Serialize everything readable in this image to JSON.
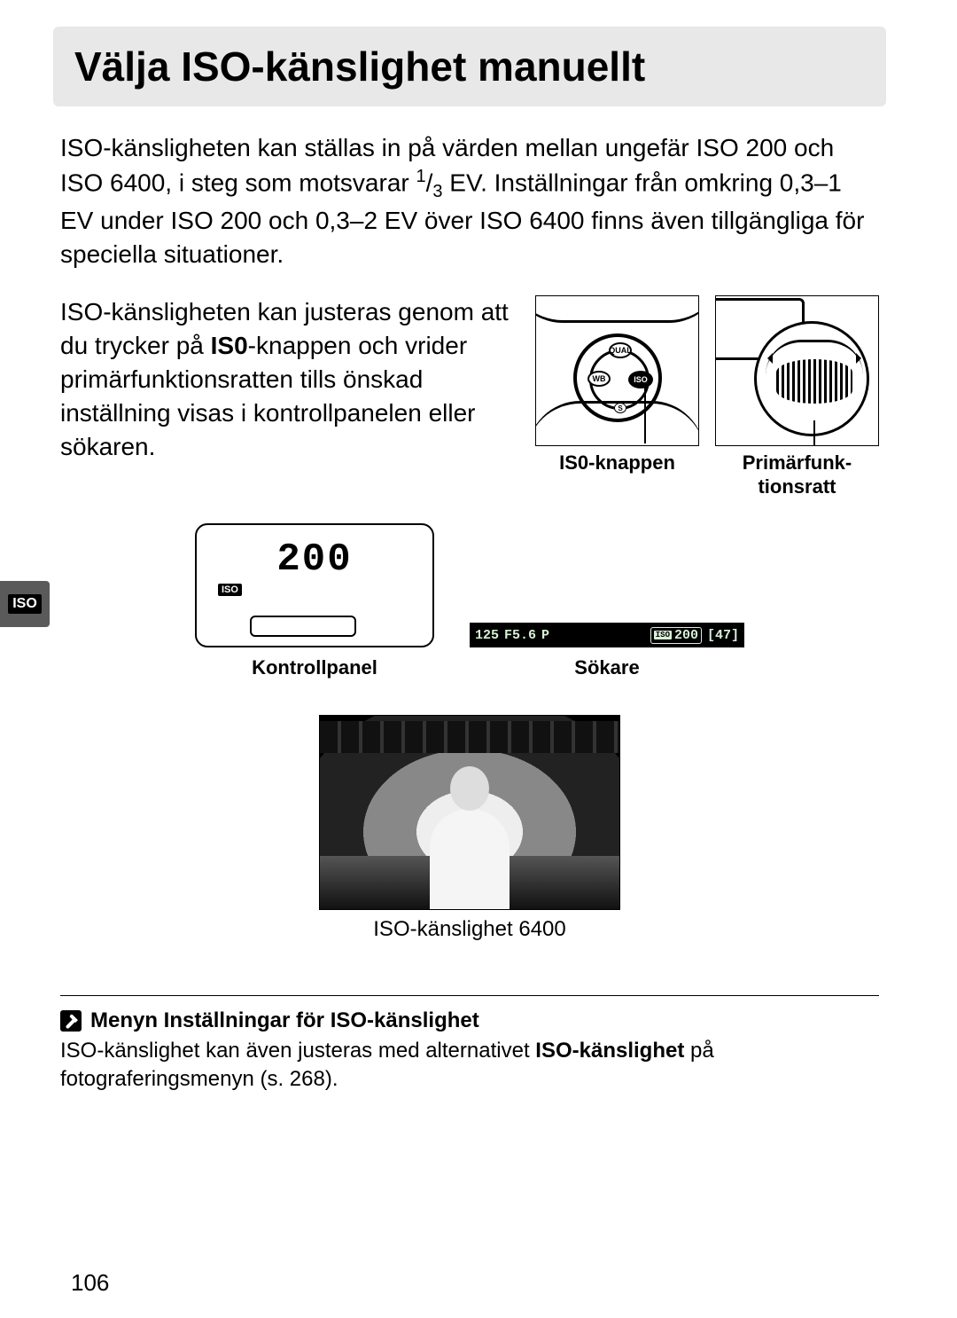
{
  "title": "Välja ISO-känslighet manuellt",
  "para1_a": "ISO-känsligheten kan ställas in på värden mellan ungefär ISO 200 och ISO 6400, i steg som motsvarar ",
  "fraction_num": "1",
  "fraction_den": "3",
  "para1_b": " EV. Inställningar från omkring 0,3–1 EV under ISO 200 och 0,3–2 EV över ISO 6400 finns även tillgängliga för speciella situationer.",
  "para2_a": "ISO-känsligheten kan justeras genom att du trycker på ",
  "iso_bold": "IS0",
  "para2_b": "-knappen och vrider primärfunktionsratten tills önskad inställning visas i kontrollpanelen eller sökaren.",
  "fig_iso_button": {
    "label": "IS0-knappen",
    "dial": {
      "qual": "QUAL",
      "wb": "WB",
      "iso": "ISO",
      "s": "S"
    }
  },
  "fig_dial": {
    "label": "Primärfunk-\ntionsratt"
  },
  "side_tab": "ISO",
  "lcd": {
    "value": "200",
    "iso_badge": "ISO",
    "label": "Kontrollpanel"
  },
  "viewfinder": {
    "shutter": "125",
    "fprefix": "F",
    "aperture": "5.6",
    "mode": "P",
    "iso_lbl": "ISO",
    "iso_val": "200",
    "frames": "[47]",
    "label": "Sökare"
  },
  "photo_caption": "ISO-känslighet 6400",
  "note": {
    "heading": "Menyn Inställningar för ISO-känslighet",
    "body_a": "ISO-känslighet kan även justeras med alternativet ",
    "body_bold": "ISO-känslighet",
    "body_b": " på fotograferingsmenyn (s. 268)."
  },
  "page_number": "106",
  "colors": {
    "title_bg": "#e8e8e8",
    "sidetab_bg": "#5a5a5a",
    "vf_text": "#d8f0d8"
  }
}
